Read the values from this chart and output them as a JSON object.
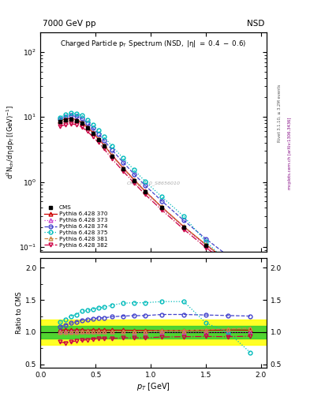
{
  "title_top": "7000 GeV pp",
  "title_right": "NSD",
  "plot_title": "Charged Particle p_{T} Spectrum (NSD, |\\eta| = 0.4 - 0.6)",
  "xlabel": "p_{T} [GeV]",
  "ylabel_main": "d^{2}N_{ch}/d\\eta dp_{T} [(GeV)^{-1}]",
  "ylabel_ratio": "Ratio to CMS",
  "watermark": "CMS_2010_S8656010",
  "rivet_text": "Rivet 3.1.10, ≥ 3.2M events",
  "mcplots_text": "mcplots.cern.ch [arXiv:1306.3436]",
  "pt_cms": [
    0.175,
    0.225,
    0.275,
    0.325,
    0.375,
    0.425,
    0.475,
    0.525,
    0.575,
    0.65,
    0.75,
    0.85,
    0.95,
    1.1,
    1.3,
    1.5,
    1.7,
    1.9
  ],
  "cms_y": [
    8.5,
    9.0,
    9.2,
    8.8,
    8.0,
    6.8,
    5.6,
    4.5,
    3.6,
    2.5,
    1.6,
    1.05,
    0.7,
    0.4,
    0.2,
    0.105,
    0.058,
    0.032
  ],
  "cms_err": [
    0.3,
    0.3,
    0.3,
    0.3,
    0.3,
    0.25,
    0.2,
    0.18,
    0.14,
    0.1,
    0.065,
    0.042,
    0.028,
    0.016,
    0.008,
    0.004,
    0.0023,
    0.0013
  ],
  "pt_mc": [
    0.175,
    0.225,
    0.275,
    0.325,
    0.375,
    0.425,
    0.475,
    0.525,
    0.575,
    0.65,
    0.75,
    0.85,
    0.95,
    1.1,
    1.3,
    1.5,
    1.7,
    1.9
  ],
  "p370_y": [
    8.8,
    9.3,
    9.5,
    9.1,
    8.3,
    7.0,
    5.8,
    4.65,
    3.72,
    2.58,
    1.65,
    1.08,
    0.72,
    0.41,
    0.205,
    0.108,
    0.06,
    0.033
  ],
  "p373_y": [
    8.6,
    9.1,
    9.3,
    8.9,
    8.1,
    6.85,
    5.65,
    4.55,
    3.64,
    2.52,
    1.61,
    1.05,
    0.7,
    0.4,
    0.2,
    0.105,
    0.058,
    0.032
  ],
  "p374_y": [
    9.2,
    10.0,
    10.5,
    10.2,
    9.5,
    8.1,
    6.75,
    5.5,
    4.4,
    3.1,
    2.0,
    1.32,
    0.88,
    0.51,
    0.255,
    0.133,
    0.073,
    0.04
  ],
  "p375_y": [
    9.8,
    10.8,
    11.5,
    11.2,
    10.6,
    9.1,
    7.6,
    6.2,
    5.0,
    3.55,
    2.32,
    1.53,
    1.02,
    0.59,
    0.295,
    0.12,
    0.058,
    0.022
  ],
  "p381_y": [
    8.5,
    9.0,
    9.2,
    8.85,
    8.05,
    6.85,
    5.65,
    4.55,
    3.64,
    2.52,
    1.62,
    1.06,
    0.71,
    0.41,
    0.205,
    0.109,
    0.061,
    0.034
  ],
  "p382_y": [
    7.2,
    7.5,
    7.8,
    7.6,
    7.0,
    6.0,
    5.0,
    4.05,
    3.25,
    2.26,
    1.46,
    0.96,
    0.64,
    0.37,
    0.186,
    0.098,
    0.054,
    0.03
  ],
  "series": [
    {
      "label": "Pythia 6.428 370",
      "color": "#cc0000",
      "ls": "-",
      "marker": "^",
      "mfc": "none",
      "key": "p370_y"
    },
    {
      "label": "Pythia 6.428 373",
      "color": "#cc44cc",
      "ls": ":",
      "marker": "^",
      "mfc": "none",
      "key": "p373_y"
    },
    {
      "label": "Pythia 6.428 374",
      "color": "#4444cc",
      "ls": "--",
      "marker": "o",
      "mfc": "none",
      "key": "p374_y"
    },
    {
      "label": "Pythia 6.428 375",
      "color": "#00bbbb",
      "ls": ":",
      "marker": "o",
      "mfc": "none",
      "key": "p375_y"
    },
    {
      "label": "Pythia 6.428 381",
      "color": "#cc8844",
      "ls": "--",
      "marker": "^",
      "mfc": "none",
      "key": "p381_y"
    },
    {
      "label": "Pythia 6.428 382",
      "color": "#cc0044",
      "ls": "-.",
      "marker": "v",
      "mfc": "none",
      "key": "p382_y"
    }
  ],
  "ratio_band_green": [
    0.9,
    1.1
  ],
  "ratio_band_yellow": [
    0.8,
    1.2
  ],
  "xlim": [
    0.0,
    2.05
  ],
  "ylim_main": [
    0.085,
    200
  ],
  "ylim_ratio": [
    0.45,
    2.15
  ]
}
